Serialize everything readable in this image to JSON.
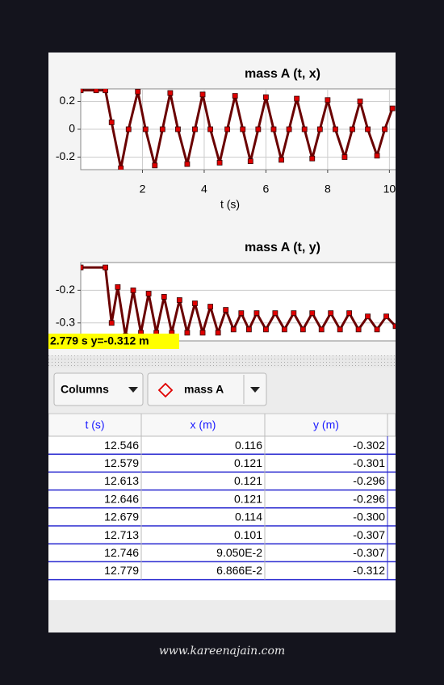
{
  "charts": [
    {
      "type": "line",
      "title": "mass A (t, x)",
      "x_label": "t (s)",
      "xlim": [
        0,
        10.2
      ],
      "xticks": [
        2,
        4,
        6,
        8,
        10
      ],
      "ylim": [
        -0.29,
        0.29
      ],
      "yticks": [
        0.2,
        0,
        -0.2
      ],
      "grid": true,
      "series": [
        {
          "color": "#e00000",
          "x": [
            0,
            0.5,
            0.8,
            1.0,
            1.3,
            1.55,
            1.85,
            2.1,
            2.4,
            2.65,
            2.9,
            3.15,
            3.45,
            3.7,
            3.95,
            4.2,
            4.5,
            4.75,
            5.0,
            5.25,
            5.5,
            5.75,
            6.0,
            6.25,
            6.5,
            6.75,
            7.0,
            7.25,
            7.5,
            7.75,
            8.0,
            8.25,
            8.55,
            8.8,
            9.05,
            9.3,
            9.6,
            9.85,
            10.1
          ],
          "values": [
            0.28,
            0.28,
            0.28,
            0.05,
            -0.28,
            0,
            0.27,
            0,
            -0.26,
            0,
            0.26,
            0,
            -0.25,
            0,
            0.25,
            0,
            -0.24,
            0,
            0.24,
            0,
            -0.23,
            0,
            0.23,
            0,
            -0.22,
            0,
            0.22,
            0,
            -0.21,
            0,
            0.21,
            0,
            -0.2,
            0,
            0.2,
            0,
            -0.19,
            0,
            0.15
          ]
        }
      ]
    },
    {
      "type": "line",
      "title": "mass A (t, y)",
      "xlim": [
        0,
        10.2
      ],
      "ylim": [
        -0.355,
        -0.115
      ],
      "yticks": [
        -0.2,
        -0.3
      ],
      "grid": true,
      "readout": "2.779 s  y=-0.312 m",
      "series": [
        {
          "color": "#e00000",
          "x": [
            0,
            0.8,
            1.0,
            1.2,
            1.45,
            1.7,
            1.95,
            2.2,
            2.45,
            2.7,
            2.95,
            3.2,
            3.45,
            3.7,
            3.95,
            4.2,
            4.45,
            4.7,
            4.95,
            5.2,
            5.45,
            5.7,
            6.0,
            6.3,
            6.6,
            6.9,
            7.2,
            7.5,
            7.8,
            8.1,
            8.4,
            8.7,
            9.0,
            9.3,
            9.6,
            9.9,
            10.2
          ],
          "values": [
            -0.13,
            -0.13,
            -0.3,
            -0.19,
            -0.34,
            -0.2,
            -0.33,
            -0.21,
            -0.33,
            -0.22,
            -0.33,
            -0.23,
            -0.33,
            -0.24,
            -0.33,
            -0.25,
            -0.33,
            -0.26,
            -0.32,
            -0.27,
            -0.32,
            -0.27,
            -0.32,
            -0.27,
            -0.32,
            -0.27,
            -0.32,
            -0.27,
            -0.32,
            -0.27,
            -0.32,
            -0.27,
            -0.32,
            -0.28,
            -0.32,
            -0.28,
            -0.31
          ]
        }
      ]
    }
  ],
  "toolbar": {
    "columns": "Columns",
    "track": "mass A"
  },
  "table": {
    "header": [
      "t (s)",
      "x (m)",
      "y (m)"
    ],
    "rows": [
      [
        "12.546",
        "0.116",
        "-0.302"
      ],
      [
        "12.579",
        "0.121",
        "-0.301"
      ],
      [
        "12.613",
        "0.121",
        "-0.296"
      ],
      [
        "12.646",
        "0.121",
        "-0.296"
      ],
      [
        "12.679",
        "0.114",
        "-0.300"
      ],
      [
        "12.713",
        "0.101",
        "-0.307"
      ],
      [
        "12.746",
        "9.050E-2",
        "-0.307"
      ],
      [
        "12.779",
        "6.866E-2",
        "-0.312"
      ]
    ]
  },
  "watermark": "www.kareenajain.com"
}
